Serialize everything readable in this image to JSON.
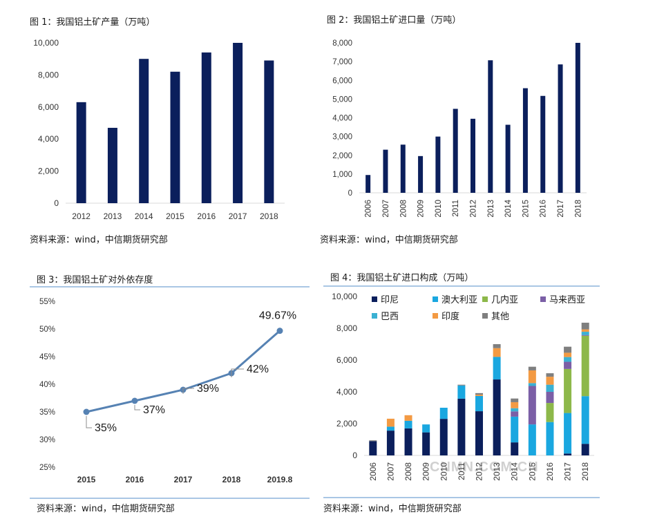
{
  "chart_data": [
    {
      "type": "bar",
      "title": "图 1：我国铝土矿产量（万吨）",
      "source": "资料来源：wind，中信期货研究部",
      "categories": [
        "2012",
        "2013",
        "2014",
        "2015",
        "2016",
        "2017",
        "2018"
      ],
      "values": [
        6300,
        4700,
        9000,
        8200,
        9400,
        10000,
        8900
      ],
      "ylim": [
        0,
        10000
      ],
      "yticks": [
        "0",
        "2,000",
        "4,000",
        "6,000",
        "8,000",
        "10,000"
      ],
      "bar_color": "#0b1f5c",
      "grid": false
    },
    {
      "type": "bar",
      "title": "图 2：我国铝土矿进口量（万吨）",
      "source": "资料来源：wind，中信期货研究部",
      "categories": [
        "2006",
        "2007",
        "2008",
        "2009",
        "2010",
        "2011",
        "2012",
        "2013",
        "2014",
        "2015",
        "2016",
        "2017",
        "2018"
      ],
      "values": [
        950,
        2300,
        2570,
        1960,
        3000,
        4480,
        3950,
        7070,
        3630,
        5580,
        5170,
        6850,
        8000
      ],
      "ylim": [
        0,
        8000
      ],
      "yticks": [
        "0",
        "1,000",
        "2,000",
        "3,000",
        "4,000",
        "5,000",
        "6,000",
        "7,000",
        "8,000"
      ],
      "bar_color": "#0b1f5c",
      "grid": false
    },
    {
      "type": "line",
      "title": "图 3：我国铝土矿对外依存度",
      "source": "资料来源：wind，中信期货研究部",
      "x": [
        "2015",
        "2016",
        "2017",
        "2018",
        "2019.8"
      ],
      "values": [
        35,
        37,
        39,
        42,
        49.67
      ],
      "labels": [
        "35%",
        "37%",
        "39%",
        "42%",
        "49.67%"
      ],
      "ylim": [
        25,
        55
      ],
      "yticks": [
        "25%",
        "30%",
        "35%",
        "40%",
        "45%",
        "50%",
        "55%"
      ],
      "line_color": "#5682b3",
      "grid": false
    },
    {
      "type": "bar",
      "stacked": true,
      "title": "图 4：我国铝土矿进口构成（万吨）",
      "source": "资料来源：wind，中信期货研究部",
      "categories": [
        "2006",
        "2007",
        "2008",
        "2009",
        "2010",
        "2011",
        "2012",
        "2013",
        "2014",
        "2015",
        "2016",
        "2017",
        "2018"
      ],
      "ylim": [
        0,
        10000
      ],
      "yticks": [
        "0",
        "2,000",
        "4,000",
        "6,000",
        "8,000",
        "10,000"
      ],
      "legend_placement": "top",
      "grid": false,
      "series": [
        {
          "name": "印尼",
          "color": "#0b1f5c",
          "values": [
            900,
            1560,
            1700,
            1450,
            2300,
            3570,
            2780,
            4780,
            820,
            0,
            0,
            120,
            730
          ]
        },
        {
          "name": "澳大利亚",
          "color": "#1aa7e0",
          "values": [
            0,
            250,
            480,
            500,
            700,
            830,
            960,
            1420,
            1620,
            1950,
            2100,
            2550,
            3000
          ]
        },
        {
          "name": "几内亚",
          "color": "#8db84a",
          "values": [
            0,
            0,
            0,
            0,
            0,
            0,
            0,
            0,
            0,
            0,
            1200,
            2770,
            3800
          ]
        },
        {
          "name": "马来西亚",
          "color": "#7b5fa6",
          "values": [
            0,
            0,
            0,
            0,
            0,
            0,
            0,
            0,
            330,
            2420,
            700,
            450,
            50
          ]
        },
        {
          "name": "巴西",
          "color": "#3ab1d3",
          "values": [
            0,
            0,
            0,
            0,
            0,
            0,
            0,
            0,
            200,
            180,
            450,
            300,
            200
          ]
        },
        {
          "name": "印度",
          "color": "#f39a43",
          "values": [
            0,
            500,
            350,
            0,
            0,
            0,
            80,
            550,
            380,
            800,
            500,
            270,
            150
          ]
        },
        {
          "name": "其他",
          "color": "#7f7f7f",
          "values": [
            50,
            0,
            0,
            0,
            0,
            50,
            100,
            250,
            230,
            230,
            220,
            380,
            420
          ]
        }
      ]
    }
  ],
  "watermark": "CNMN.COM.CN"
}
